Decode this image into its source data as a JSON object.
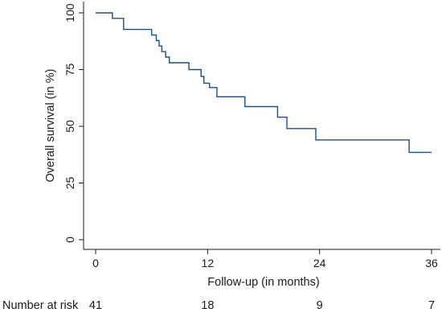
{
  "chart_data": {
    "type": "line",
    "step": true,
    "xlabel": "Follow-up (in months)",
    "ylabel": "Overall survival (in %)",
    "xlim": [
      0,
      36
    ],
    "ylim": [
      0,
      100
    ],
    "x_ticks": [
      "0",
      "12",
      "24",
      "36"
    ],
    "y_ticks": [
      "0",
      "25",
      "50",
      "75",
      "100"
    ],
    "line_color": "#1f4e79",
    "series": [
      {
        "name": "",
        "x": [
          0,
          1.8,
          3.0,
          6.0,
          6.5,
          6.8,
          7.1,
          7.5,
          7.9,
          10.0,
          11.3,
          11.6,
          12.2,
          13.0,
          16.0,
          19.5,
          20.5,
          23.6,
          33.6,
          36.0
        ],
        "y": [
          100,
          97.6,
          92.7,
          90.2,
          87.8,
          85.4,
          82.9,
          80.5,
          78.0,
          75.0,
          72.0,
          69.0,
          67.1,
          63.0,
          58.7,
          54.0,
          49.0,
          44.0,
          38.5,
          38.5
        ]
      }
    ],
    "number_at_risk": {
      "label": "Number at risk",
      "times": [
        0,
        12,
        24,
        36
      ],
      "values": [
        "41",
        "18",
        "9",
        "7"
      ]
    }
  }
}
